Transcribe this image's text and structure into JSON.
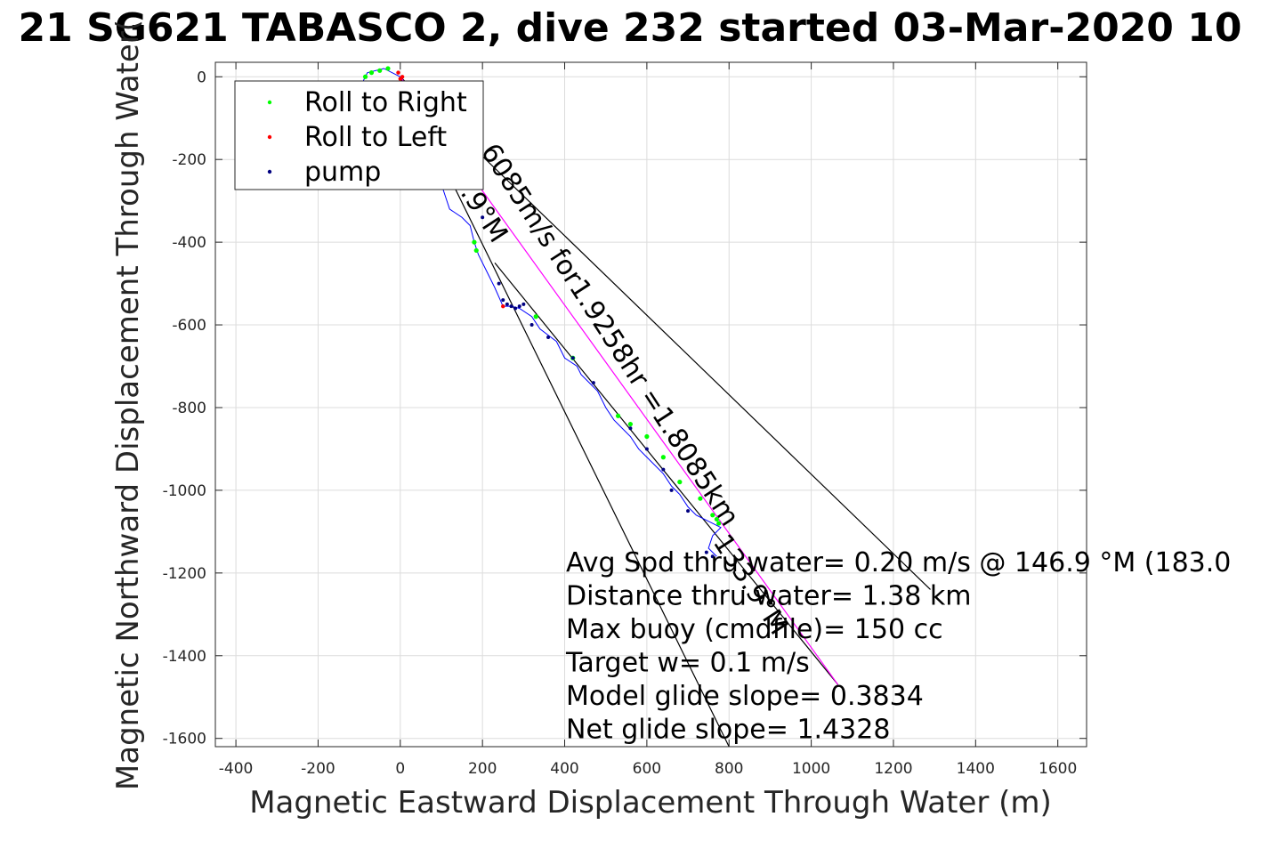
{
  "chart_data": {
    "type": "scatter",
    "title": "21 SG621 TABASCO 2, dive 232 started 03-Mar-2020 10",
    "xlabel": "Magnetic Eastward Displacement Through Water (m)",
    "ylabel": "Magnetic Northward Displacement Through Water(",
    "xlim": [
      -450,
      1670
    ],
    "ylim": [
      -1620,
      35
    ],
    "xticks": [
      -400,
      -200,
      0,
      200,
      400,
      600,
      800,
      1000,
      1200,
      1400,
      1600
    ],
    "yticks": [
      0,
      -200,
      -400,
      -600,
      -800,
      -1000,
      -1200,
      -1400,
      -1600
    ],
    "grid": true,
    "legend": {
      "placement": "top-left",
      "entries": [
        {
          "label": "Roll to Right",
          "color": "#00ff00"
        },
        {
          "label": "Roll to Left",
          "color": "#ff0000"
        },
        {
          "label": "pump",
          "color": "#000080"
        }
      ]
    },
    "track": {
      "color": "#0000ff",
      "x": [
        0,
        -40,
        -80,
        -90,
        -60,
        -20,
        0,
        20,
        40,
        70,
        100,
        110,
        120,
        150,
        170,
        180,
        190,
        210,
        230,
        250,
        270,
        290,
        320,
        340,
        380,
        400,
        430,
        440,
        460,
        480,
        500,
        520,
        540,
        560,
        580,
        600,
        620,
        640,
        660,
        680,
        700,
        720,
        740,
        760,
        780,
        760,
        750,
        760,
        770
      ],
      "y": [
        0,
        20,
        10,
        -10,
        -50,
        -100,
        -120,
        -150,
        -180,
        -220,
        -260,
        -290,
        -320,
        -340,
        -360,
        -400,
        -430,
        -470,
        -510,
        -555,
        -555,
        -560,
        -580,
        -610,
        -640,
        -680,
        -700,
        -720,
        -740,
        -760,
        -800,
        -830,
        -850,
        -870,
        -900,
        -920,
        -940,
        -960,
        -990,
        -1010,
        -1040,
        -1060,
        -1070,
        -1080,
        -1090,
        -1110,
        -1140,
        -1150,
        -1160
      ]
    },
    "roll_right": {
      "x": [
        -85,
        -70,
        -50,
        -30,
        100,
        110,
        120,
        180,
        185,
        330,
        420,
        530,
        560,
        600,
        640,
        680,
        730,
        760,
        770,
        775
      ],
      "y": [
        0,
        10,
        15,
        20,
        -200,
        -220,
        -250,
        -400,
        -420,
        -580,
        -680,
        -820,
        -840,
        -870,
        -920,
        -980,
        -1020,
        -1060,
        -1070,
        -1080
      ]
    },
    "roll_left": {
      "x": [
        5,
        0,
        -5,
        250
      ],
      "y": [
        0,
        -5,
        10,
        -555
      ]
    },
    "pump": {
      "x": [
        150,
        200,
        240,
        250,
        260,
        270,
        280,
        290,
        300,
        320,
        360,
        420,
        470,
        560,
        600,
        640,
        660,
        700,
        745,
        760
      ],
      "y": [
        -200,
        -340,
        -500,
        -540,
        -550,
        -555,
        -560,
        -555,
        -550,
        -600,
        -630,
        -680,
        -740,
        -850,
        -900,
        -950,
        -1000,
        -1050,
        -1150,
        -1160
      ]
    },
    "lines": [
      {
        "color": "#000000",
        "x": [
          0,
          800
        ],
        "y": [
          0,
          -1620
        ]
      },
      {
        "color": "#000000",
        "x": [
          0,
          1290
        ],
        "y": [
          0,
          -1240
        ]
      },
      {
        "color": "#000000",
        "x": [
          230,
          1065
        ],
        "y": [
          -450,
          -1470
        ]
      },
      {
        "color": "#ff00ff",
        "x": [
          0,
          1065
        ],
        "y": [
          0,
          -1470
        ]
      }
    ],
    "rotated_labels": [
      {
        "text": "6085m/s for1.9258hr =1.8085km",
        "x": 195,
        "y": -180,
        "angle": 57
      },
      {
        "text": ".9°M",
        "x": 145,
        "y": -280,
        "angle": 57
      },
      {
        "text": "133.9°M",
        "x": 760,
        "y": -1125,
        "angle": 57
      }
    ],
    "annotations": [
      "Avg Spd thru water=  0.20 m/s @ 146.9 °M (183.0",
      "Distance thru water=  1.38 km",
      "Max buoy (cmdfile)= 150 cc",
      "Target w= 0.1 m/s",
      "Model glide slope= 0.3834",
      "Net glide slope= 1.4328"
    ]
  }
}
